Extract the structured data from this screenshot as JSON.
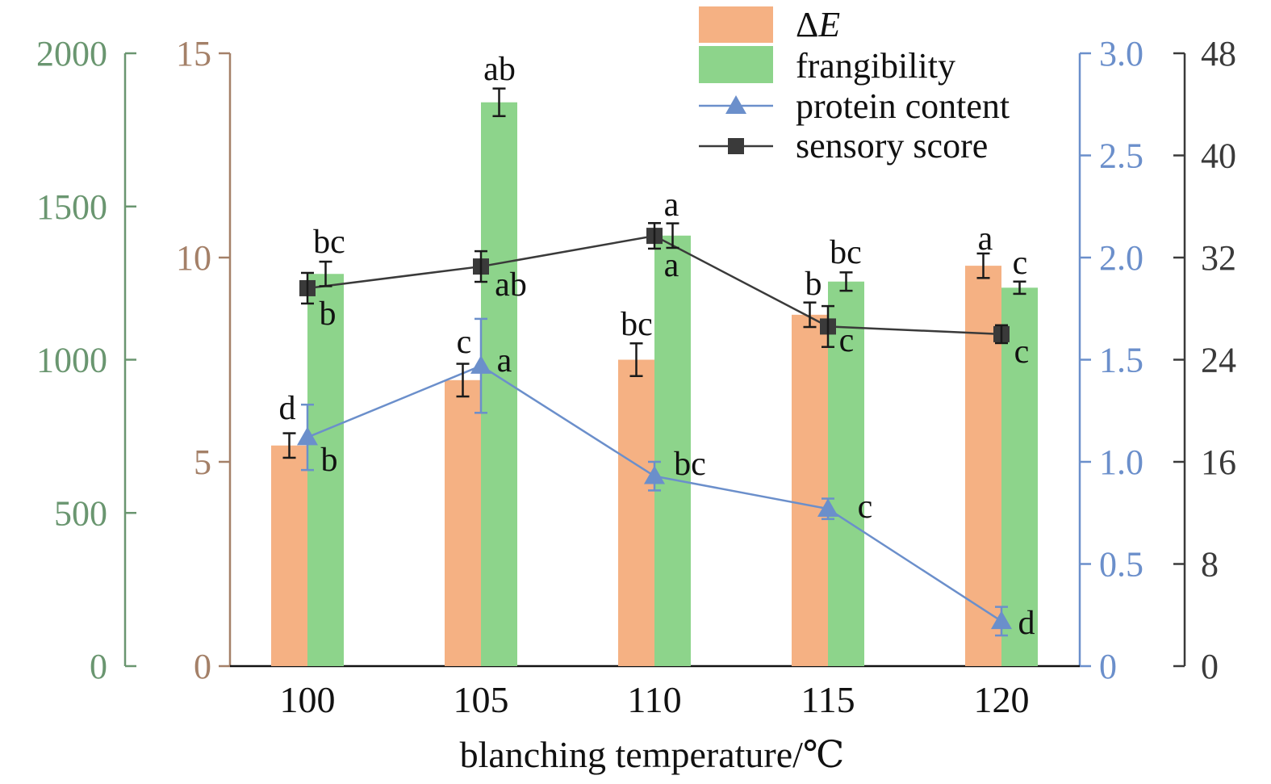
{
  "chart_data": {
    "type": "bar",
    "title": "",
    "xlabel": "blanching temperature/℃",
    "categories": [
      "100",
      "105",
      "110",
      "115",
      "120"
    ],
    "series": [
      {
        "name": "ΔE",
        "kind": "bar",
        "axis": "dE",
        "color": "#f5b183",
        "values": [
          5.4,
          7.0,
          7.5,
          8.6,
          9.8
        ],
        "errors": [
          0.3,
          0.4,
          0.4,
          0.3,
          0.3
        ],
        "letters": [
          "d",
          "c",
          "bc",
          "b",
          "a"
        ]
      },
      {
        "name": "frangibility",
        "kind": "bar",
        "axis": "frangibility",
        "color": "#8dd48b",
        "values": [
          1280,
          1840,
          1405,
          1255,
          1235
        ],
        "errors": [
          40,
          45,
          40,
          30,
          20
        ],
        "letters": [
          "bc",
          "ab",
          "a",
          "bc",
          "c"
        ]
      },
      {
        "name": "protein content",
        "kind": "line",
        "axis": "protein",
        "color": "#6b8fcb",
        "marker": "triangle",
        "values": [
          1.12,
          1.47,
          0.93,
          0.77,
          0.22
        ],
        "errors": [
          0.16,
          0.23,
          0.07,
          0.05,
          0.07
        ],
        "letters": [
          "b",
          "a",
          "bc",
          "c",
          "d"
        ]
      },
      {
        "name": "sensory score",
        "kind": "line",
        "axis": "sensory",
        "color": "#3a3a3a",
        "marker": "square",
        "values": [
          29.6,
          31.3,
          33.7,
          26.6,
          26.0
        ],
        "errors": [
          1.2,
          1.2,
          1.0,
          1.6,
          0.7
        ],
        "letters": [
          "b",
          "ab",
          "a",
          "c",
          "c"
        ]
      }
    ],
    "axes": {
      "frangibility": {
        "color": "#6a9670",
        "ylim": [
          0,
          2000
        ],
        "ticks": [
          "0",
          "500",
          "1000",
          "1500",
          "2000"
        ]
      },
      "dE": {
        "color": "#a48068",
        "ylim": [
          0,
          15
        ],
        "ticks": [
          "0",
          "5",
          "10",
          "15"
        ]
      },
      "protein": {
        "color": "#6b8fcb",
        "ylim": [
          0,
          3.0
        ],
        "ticks": [
          "0",
          "0.5",
          "1.0",
          "1.5",
          "2.0",
          "2.5",
          "3.0"
        ]
      },
      "sensory": {
        "color": "#3a3a3a",
        "ylim": [
          0,
          48
        ],
        "ticks": [
          "0",
          "8",
          "16",
          "24",
          "32",
          "40",
          "48"
        ]
      }
    },
    "legend": {
      "position": "top-right",
      "entries": [
        "ΔE",
        "frangibility",
        "protein content",
        "sensory score"
      ]
    },
    "grid": false
  }
}
